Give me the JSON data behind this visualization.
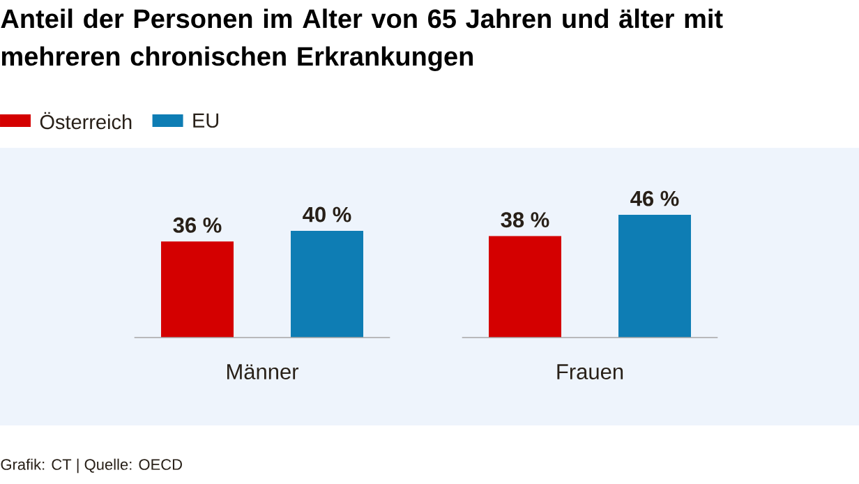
{
  "chart_data": {
    "type": "bar",
    "title": "Anteil der Personen im Alter von 65 Jahren und älter mit mehreren chronischen Erkrankungen",
    "categories": [
      "Männer",
      "Frauen"
    ],
    "series": [
      {
        "name": "Österreich",
        "color": "#d40000",
        "values": [
          36,
          38
        ],
        "value_labels": [
          "36 %",
          "38 %"
        ]
      },
      {
        "name": "EU",
        "color": "#0e7db4",
        "values": [
          40,
          46
        ],
        "value_labels": [
          "40 %",
          "46 %"
        ]
      }
    ],
    "legend": "top left",
    "annotations": [
      "Grafik: CT | Quelle: OECD"
    ]
  }
}
